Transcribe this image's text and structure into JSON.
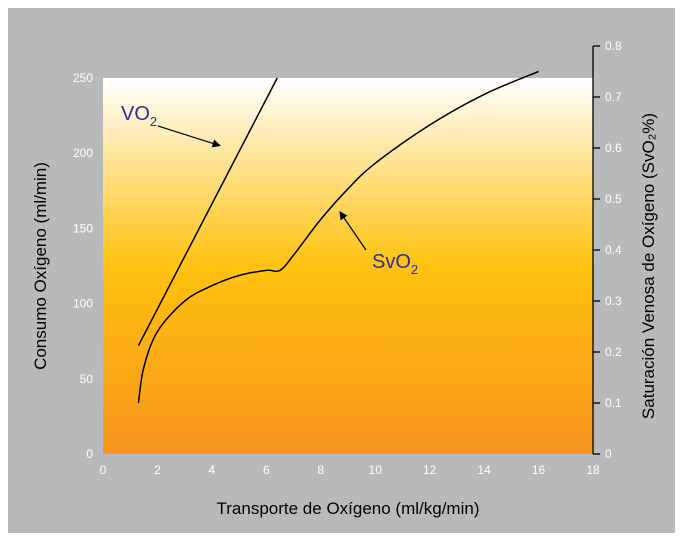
{
  "chart_data": {
    "type": "line",
    "xlabel": "Transporte de Oxígeno (ml/kg/min)",
    "ylabel_left": "Consumo Oxígeno (ml/min)",
    "ylabel_right": "Saturación Venosa de Oxígeno (SvO₂%)",
    "xlim": [
      0,
      18
    ],
    "ylim_left": [
      0,
      250
    ],
    "ylim_right": [
      0,
      0.8
    ],
    "x_ticks": [
      "0",
      "2",
      "4",
      "6",
      "8",
      "10",
      "12",
      "14",
      "16",
      "18"
    ],
    "y_left_ticks": [
      "0",
      "50",
      "100",
      "150",
      "200",
      "250"
    ],
    "y_right_ticks": [
      "0",
      "0.1",
      "0.2",
      "0.3",
      "0.4",
      "0.5",
      "0.6",
      "0.7",
      "0.8"
    ],
    "colors": {
      "background": "#b8b9bb",
      "gradient_top": "#ffffff",
      "gradient_mid": "#ffc20e",
      "gradient_bottom": "#f7941d",
      "line": "#000000",
      "annotation_text": "#2e3192"
    },
    "series": [
      {
        "name": "VO2",
        "axis": "left",
        "x": [
          1.3,
          6.4
        ],
        "y": [
          72,
          250
        ]
      },
      {
        "name": "SvO2",
        "axis": "right",
        "x": [
          1.3,
          1.5,
          2.0,
          3.0,
          4.0,
          5.0,
          6.0,
          6.5,
          7.0,
          8.0,
          9.0,
          10.0,
          12.0,
          14.0,
          16.0
        ],
        "y": [
          0.1,
          0.17,
          0.24,
          0.3,
          0.33,
          0.35,
          0.36,
          0.36,
          0.39,
          0.46,
          0.52,
          0.57,
          0.645,
          0.705,
          0.75
        ]
      }
    ],
    "annotations": [
      {
        "series": "VO2",
        "text": "VO",
        "subscript": "2",
        "arrow_to": [
          4.3,
          205
        ]
      },
      {
        "series": "SvO2",
        "text": "SvO",
        "subscript": "2",
        "arrow_to": [
          8.7,
          0.475
        ]
      }
    ]
  }
}
